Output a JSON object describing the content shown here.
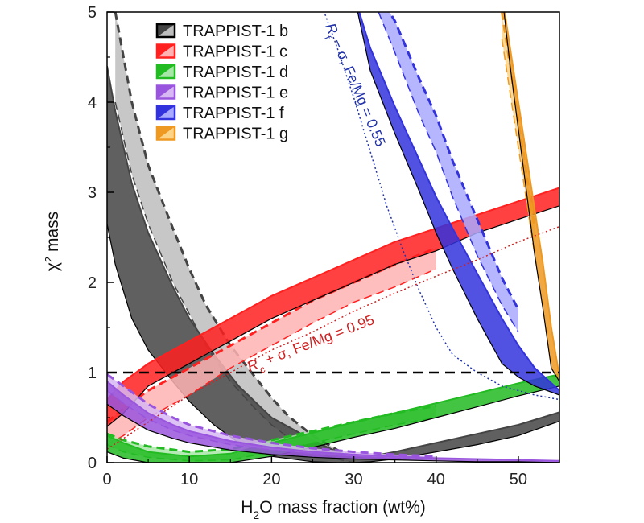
{
  "chart_data": {
    "type": "line",
    "xlabel": "H₂O mass fraction (wt%)",
    "ylabel": "χ² mass",
    "xlim": [
      0,
      55
    ],
    "ylim": [
      0,
      5
    ],
    "xticks": [
      0,
      10,
      20,
      30,
      40,
      50
    ],
    "yticks": [
      0,
      1,
      2,
      3,
      4,
      5
    ],
    "legend_position": "top-left",
    "reference_line": {
      "y": 1,
      "style": "dashed",
      "color": "#000000"
    },
    "series": [
      {
        "name": "TRAPPIST-1 b",
        "color": "#444444",
        "light_color": "#bdbdbd",
        "dark_band": {
          "x": [
            0,
            1,
            3,
            5,
            8,
            10,
            13,
            16,
            20,
            25,
            28,
            30,
            32,
            35,
            40,
            45,
            50,
            55
          ],
          "upper": [
            4.4,
            3.9,
            3.1,
            2.55,
            1.95,
            1.6,
            1.2,
            0.85,
            0.5,
            0.25,
            0.12,
            0.06,
            0.07,
            0.12,
            0.22,
            0.32,
            0.42,
            0.56
          ],
          "lower": [
            2.65,
            2.2,
            1.6,
            1.25,
            0.9,
            0.68,
            0.42,
            0.22,
            0.07,
            0.01,
            0.0,
            0.0,
            0.01,
            0.04,
            0.12,
            0.2,
            0.3,
            0.46
          ]
        },
        "light_band": {
          "x": [
            1,
            3,
            5,
            8,
            10,
            12,
            15,
            18,
            20,
            22,
            25,
            28,
            30
          ],
          "upper": [
            5.0,
            4.0,
            3.3,
            2.6,
            2.15,
            1.75,
            1.3,
            0.95,
            0.72,
            0.52,
            0.3,
            0.14,
            0.06
          ],
          "lower": [
            4.0,
            3.2,
            2.65,
            2.0,
            1.65,
            1.3,
            0.9,
            0.6,
            0.42,
            0.28,
            0.12,
            0.04,
            0.0
          ]
        }
      },
      {
        "name": "TRAPPIST-1 c",
        "color": "#ff2020",
        "light_color": "#ffb3b3",
        "dark_band": {
          "x": [
            0,
            2,
            5,
            10,
            15,
            20,
            25,
            30,
            35,
            40,
            45,
            50,
            55
          ],
          "upper": [
            0.7,
            0.9,
            1.1,
            1.35,
            1.6,
            1.85,
            2.05,
            2.25,
            2.45,
            2.6,
            2.75,
            2.9,
            3.05
          ],
          "lower": [
            0.4,
            0.55,
            0.85,
            1.1,
            1.35,
            1.6,
            1.8,
            2.0,
            2.2,
            2.35,
            2.55,
            2.7,
            2.85
          ]
        },
        "light_band": {
          "x": [
            0,
            2,
            5,
            8,
            10,
            15,
            20,
            25,
            30,
            35,
            40
          ],
          "upper": [
            0.45,
            0.6,
            0.8,
            0.95,
            1.05,
            1.3,
            1.55,
            1.8,
            2.0,
            2.2,
            2.38
          ],
          "lower": [
            0.2,
            0.3,
            0.5,
            0.65,
            0.75,
            1.05,
            1.3,
            1.55,
            1.78,
            1.95,
            2.15
          ]
        }
      },
      {
        "name": "TRAPPIST-1 d",
        "color": "#22bb22",
        "light_color": "#a8e6a8",
        "dark_band": {
          "x": [
            0,
            2,
            5,
            10,
            15,
            20,
            25,
            30,
            35,
            40,
            45,
            50,
            55
          ],
          "upper": [
            0.3,
            0.22,
            0.12,
            0.07,
            0.1,
            0.22,
            0.33,
            0.45,
            0.55,
            0.66,
            0.77,
            0.88,
            0.98
          ],
          "lower": [
            0.12,
            0.05,
            0.0,
            0.0,
            0.0,
            0.07,
            0.17,
            0.28,
            0.38,
            0.5,
            0.62,
            0.74,
            0.85
          ]
        },
        "light_band": {
          "x": [
            0,
            2,
            5,
            10,
            15,
            20,
            25,
            30,
            35,
            40
          ],
          "upper": [
            0.32,
            0.25,
            0.18,
            0.12,
            0.15,
            0.25,
            0.35,
            0.45,
            0.55,
            0.63
          ],
          "lower": [
            0.2,
            0.12,
            0.06,
            0.02,
            0.03,
            0.12,
            0.22,
            0.32,
            0.42,
            0.5
          ]
        }
      },
      {
        "name": "TRAPPIST-1 e",
        "color": "#9955dd",
        "light_color": "#d7b8f3",
        "dark_band": {
          "x": [
            0,
            2,
            5,
            8,
            10,
            15,
            20,
            25,
            30,
            35,
            40,
            45,
            50,
            55
          ],
          "upper": [
            0.9,
            0.75,
            0.55,
            0.42,
            0.35,
            0.24,
            0.17,
            0.12,
            0.09,
            0.07,
            0.05,
            0.04,
            0.03,
            0.02
          ],
          "lower": [
            0.65,
            0.52,
            0.36,
            0.27,
            0.22,
            0.14,
            0.09,
            0.06,
            0.04,
            0.03,
            0.02,
            0.01,
            0.01,
            0.0
          ]
        },
        "light_band": {
          "x": [
            0,
            2,
            5,
            8,
            10,
            15,
            20,
            25,
            30,
            35,
            40
          ],
          "upper": [
            0.98,
            0.85,
            0.65,
            0.5,
            0.42,
            0.3,
            0.22,
            0.16,
            0.12,
            0.09,
            0.07
          ],
          "lower": [
            0.8,
            0.66,
            0.48,
            0.36,
            0.3,
            0.2,
            0.14,
            0.1,
            0.07,
            0.05,
            0.04
          ]
        }
      },
      {
        "name": "TRAPPIST-1 f",
        "color": "#3333dd",
        "light_color": "#a9a9ff",
        "dark_band": {
          "x": [
            30,
            32,
            35,
            38,
            40,
            42,
            45,
            48,
            50,
            52,
            55
          ],
          "upper": [
            5.2,
            4.6,
            3.95,
            3.35,
            2.95,
            2.6,
            2.1,
            1.6,
            1.3,
            1.05,
            0.8
          ],
          "lower": [
            5.2,
            4.35,
            3.65,
            3.0,
            2.55,
            2.15,
            1.6,
            1.1,
            0.95,
            0.85,
            0.75
          ]
        },
        "light_band": {
          "x": [
            33,
            35,
            38,
            40,
            42,
            45,
            48,
            50
          ],
          "upper": [
            5.2,
            4.9,
            4.25,
            3.85,
            3.35,
            2.7,
            2.05,
            1.7
          ],
          "lower": [
            5.0,
            4.55,
            3.85,
            3.45,
            2.95,
            2.3,
            1.75,
            1.45
          ]
        }
      },
      {
        "name": "TRAPPIST-1 g",
        "color": "#ee9922",
        "light_color": "#fbd488",
        "dark_band": {
          "x": [
            48,
            49,
            50,
            51,
            52,
            53,
            54,
            55
          ],
          "upper": [
            5.2,
            4.6,
            4.0,
            3.4,
            2.8,
            2.2,
            1.5,
            0.95
          ],
          "lower": [
            5.2,
            4.4,
            3.7,
            3.0,
            2.3,
            1.7,
            1.05,
            0.9
          ]
        },
        "light_band": {
          "x": [
            48,
            49,
            50,
            51,
            52
          ],
          "upper": [
            5.0,
            4.4,
            3.8,
            3.2,
            2.6
          ],
          "lower": [
            4.7,
            4.1,
            3.5,
            2.9,
            2.3
          ]
        }
      }
    ],
    "reference_curves": [
      {
        "label": "Rf – σ, Fe/Mg = 0.55",
        "color": "#2233aa",
        "x": [
          26,
          28,
          30,
          32,
          34,
          36,
          38,
          40,
          42,
          45,
          48,
          52,
          55
        ],
        "y": [
          5.1,
          4.6,
          4.05,
          3.45,
          2.85,
          2.35,
          1.9,
          1.5,
          1.2,
          1.0,
          0.85,
          0.75,
          0.7
        ]
      },
      {
        "label": "Rc + σ, Fe/Mg = 0.95",
        "color": "#cc2222",
        "x": [
          0,
          5,
          10,
          15,
          20,
          25,
          30,
          35,
          40,
          45,
          50,
          55
        ],
        "y": [
          0.15,
          0.45,
          0.75,
          1.0,
          1.25,
          1.45,
          1.68,
          1.88,
          2.07,
          2.25,
          2.45,
          2.62
        ]
      }
    ]
  },
  "annotations": {
    "f_curve_label": "R",
    "f_curve_sub": "f",
    "f_curve_rest": " − σ, Fe/Mg = 0.55",
    "c_curve_label": "R",
    "c_curve_sub": "c",
    "c_curve_rest": " + σ, Fe/Mg = 0.95"
  },
  "axis_text": {
    "ylabel_main": "χ",
    "ylabel_sup": "2",
    "ylabel_rest": " mass",
    "xlabel_pre": "H",
    "xlabel_sub": "2",
    "xlabel_rest": "O mass fraction (wt%)"
  }
}
